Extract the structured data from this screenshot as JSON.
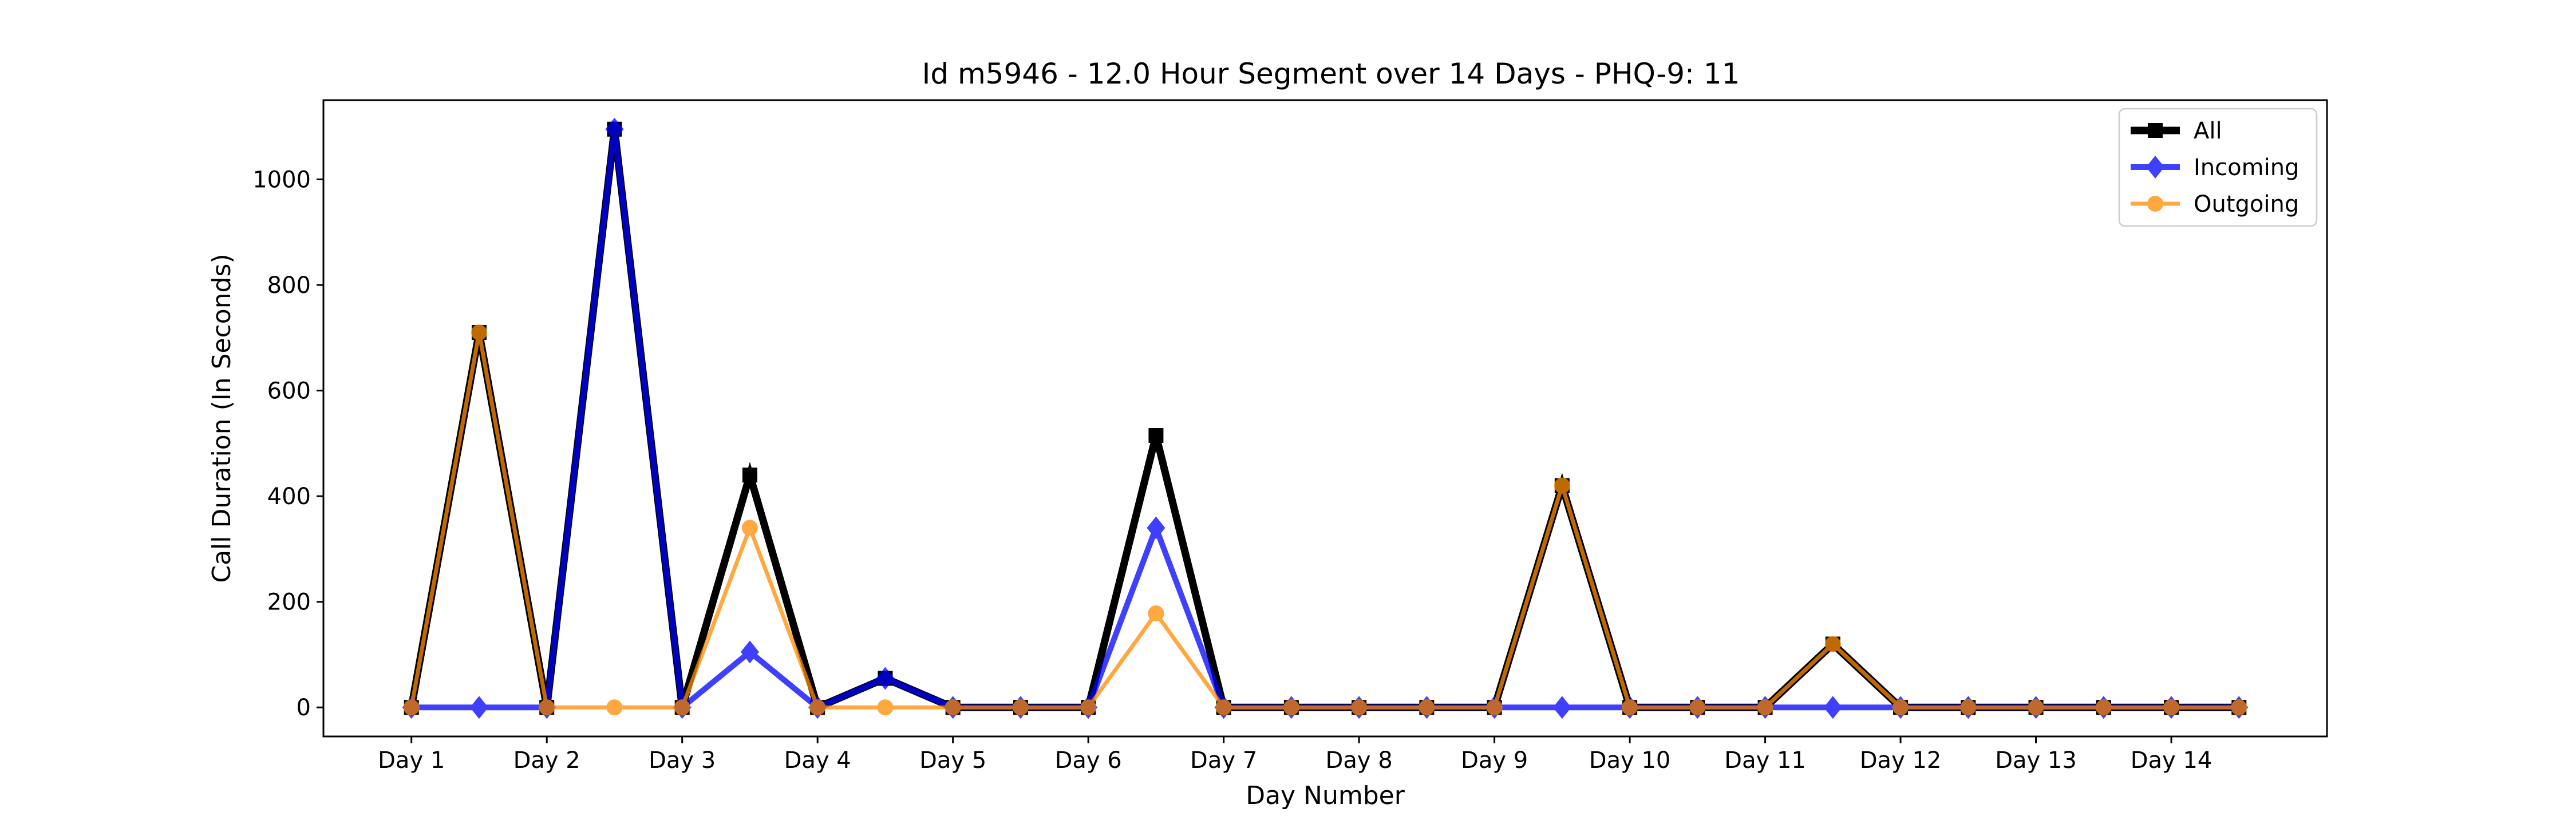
{
  "chart_data": {
    "type": "line",
    "title": "Id m5946 - 12.0 Hour Segment over 14 Days - PHQ-9: 11",
    "xlabel": "Day Number",
    "ylabel": "Call Duration (In Seconds)",
    "ylim": [
      -55,
      1150
    ],
    "xlim": [
      -1.3,
      28.3
    ],
    "yticks": [
      0,
      200,
      400,
      600,
      800,
      1000
    ],
    "xticks": [
      {
        "pos": 0,
        "label": "Day 1"
      },
      {
        "pos": 2,
        "label": "Day 2"
      },
      {
        "pos": 4,
        "label": "Day 3"
      },
      {
        "pos": 6,
        "label": "Day 4"
      },
      {
        "pos": 8,
        "label": "Day 5"
      },
      {
        "pos": 10,
        "label": "Day 6"
      },
      {
        "pos": 12,
        "label": "Day 7"
      },
      {
        "pos": 14,
        "label": "Day 8"
      },
      {
        "pos": 16,
        "label": "Day 9"
      },
      {
        "pos": 18,
        "label": "Day 10"
      },
      {
        "pos": 20,
        "label": "Day 11"
      },
      {
        "pos": 22,
        "label": "Day 12"
      },
      {
        "pos": 24,
        "label": "Day 13"
      },
      {
        "pos": 26,
        "label": "Day 14"
      }
    ],
    "legend_position": "top-right",
    "grid": false,
    "x": [
      0,
      1,
      2,
      3,
      4,
      5,
      6,
      7,
      8,
      9,
      10,
      11,
      12,
      13,
      14,
      15,
      16,
      17,
      18,
      19,
      20,
      21,
      22,
      23,
      24,
      25,
      26,
      27
    ],
    "series": [
      {
        "name": "All",
        "color": "#000000",
        "marker": "square",
        "values": [
          0,
          710,
          0,
          1095,
          0,
          440,
          0,
          55,
          0,
          0,
          0,
          515,
          0,
          0,
          0,
          0,
          0,
          420,
          0,
          0,
          0,
          120,
          0,
          0,
          0,
          0,
          0,
          0
        ]
      },
      {
        "name": "Incoming",
        "color": "#0000ff",
        "marker": "diamond",
        "values": [
          0,
          0,
          0,
          1095,
          0,
          105,
          0,
          55,
          0,
          0,
          0,
          340,
          0,
          0,
          0,
          0,
          0,
          0,
          0,
          0,
          0,
          0,
          0,
          0,
          0,
          0,
          0,
          0
        ]
      },
      {
        "name": "Outgoing",
        "color": "#ff8c00",
        "marker": "circle",
        "values": [
          0,
          710,
          0,
          0,
          0,
          340,
          0,
          0,
          0,
          0,
          0,
          178,
          0,
          0,
          0,
          0,
          0,
          420,
          0,
          0,
          0,
          120,
          0,
          0,
          0,
          0,
          0,
          0
        ]
      }
    ]
  }
}
